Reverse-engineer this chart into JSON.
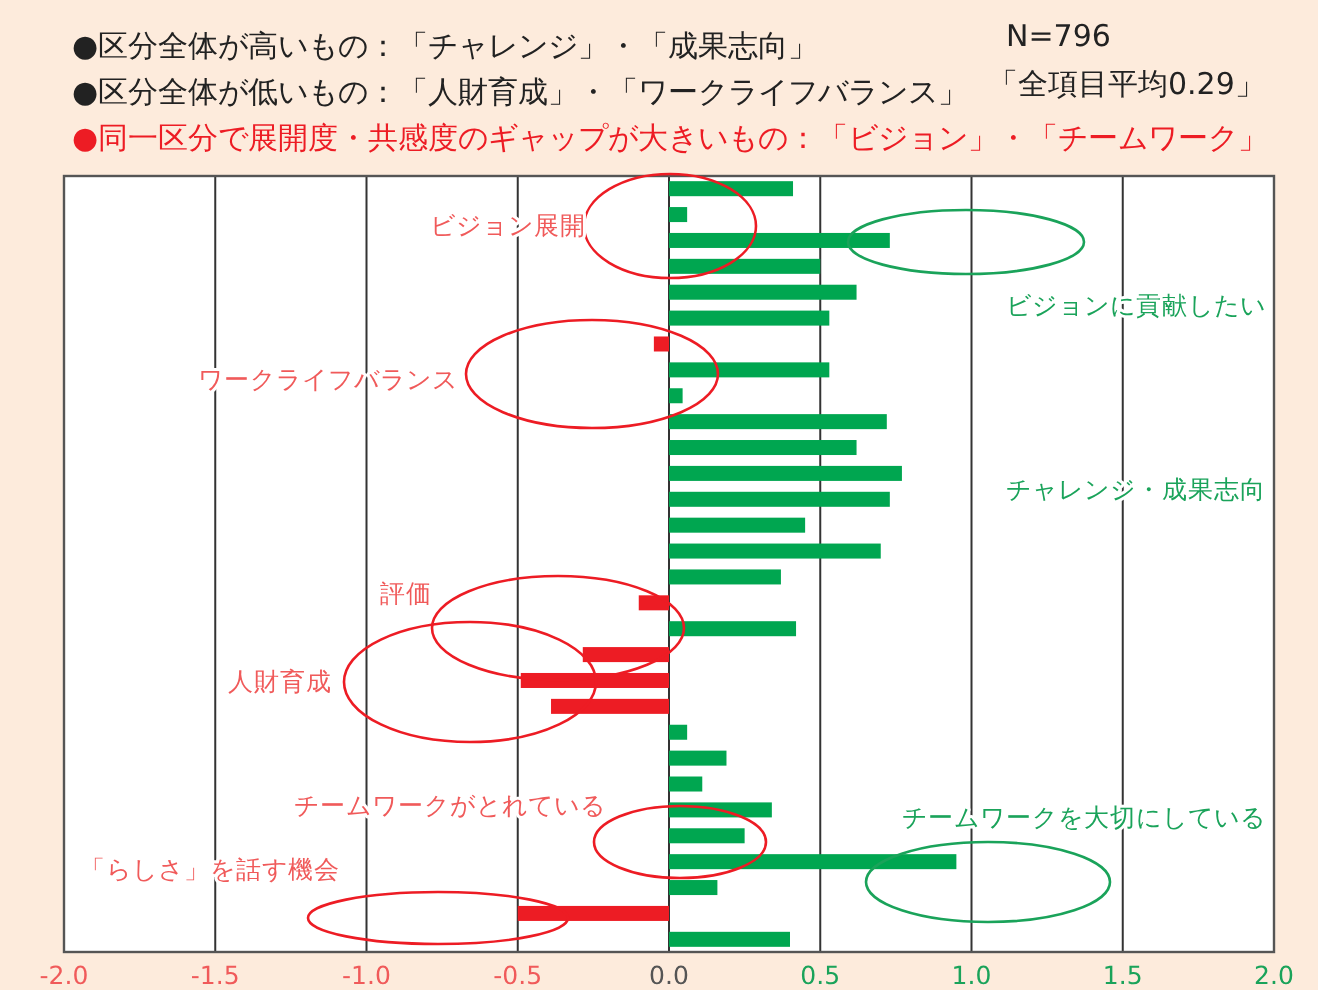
{
  "chart_data": {
    "type": "bar",
    "orientation": "horizontal",
    "categories": [
      null,
      null,
      null,
      null,
      null,
      null,
      null,
      null,
      null,
      null,
      null,
      null,
      null,
      null,
      null,
      null,
      null,
      null,
      null,
      null,
      null,
      null,
      null,
      null,
      null,
      null,
      null,
      null,
      null,
      null
    ],
    "values": [
      0.41,
      0.06,
      0.73,
      0.5,
      0.62,
      0.53,
      -0.05,
      0.53,
      0.045,
      0.72,
      0.62,
      0.77,
      0.73,
      0.45,
      0.7,
      0.37,
      -0.1,
      0.42,
      -0.285,
      -0.49,
      -0.39,
      0.06,
      0.19,
      0.11,
      0.34,
      0.25,
      0.95,
      0.16,
      -0.5,
      0.4
    ],
    "colors": [
      "#00a650",
      "#00a650",
      "#00a650",
      "#00a650",
      "#00a650",
      "#00a650",
      "#ed1c24",
      "#00a650",
      "#00a650",
      "#00a650",
      "#00a650",
      "#00a650",
      "#00a650",
      "#00a650",
      "#00a650",
      "#00a650",
      "#ed1c24",
      "#00a650",
      "#ed1c24",
      "#ed1c24",
      "#ed1c24",
      "#00a650",
      "#00a650",
      "#00a650",
      "#00a650",
      "#00a650",
      "#00a650",
      "#00a650",
      "#ed1c24",
      "#00a650"
    ],
    "xlim": [
      -2,
      2
    ],
    "xticks": [
      {
        "value": -2,
        "label": "-2.0"
      },
      {
        "value": -1.5,
        "label": "-1.5"
      },
      {
        "value": -1,
        "label": "-1.0"
      },
      {
        "value": -0.5,
        "label": "-0.5"
      },
      {
        "value": 0,
        "label": "0.0"
      },
      {
        "value": 0.5,
        "label": "0.5"
      },
      {
        "value": 1,
        "label": "1.0"
      },
      {
        "value": 1.5,
        "label": "1.5"
      },
      {
        "value": 2,
        "label": "2.0"
      }
    ],
    "grid": "x",
    "annotations": [
      "●区分全体が高いもの：「チャレンジ」・「成果志向」",
      "●区分全体が低いもの：「人財育成」・「ワークライフバランス」",
      "●同一区分で展開度・共感度のギャップが大きいもの：「ビジョン」・「チームワーク」",
      "N=796",
      "「全項目平均0.29」",
      "ビジョン展開",
      "ビジョンに貢献したい",
      "ワークライフバランス",
      "チャレンジ・成果志向",
      "評価",
      "人財育成",
      "チームワークがとれている",
      "チームワークを大切にしている",
      "「らしさ」を話す機会"
    ]
  }
}
